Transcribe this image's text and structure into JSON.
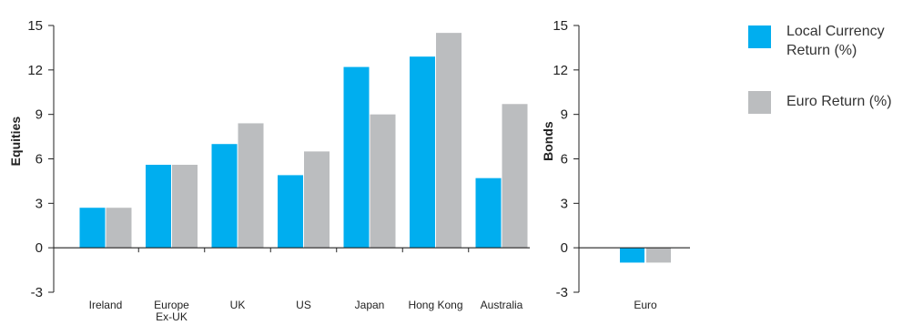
{
  "chart_data": [
    {
      "type": "bar",
      "ylabel": "Equities",
      "categories": [
        "Ireland",
        "Europe Ex-UK",
        "UK",
        "US",
        "Japan",
        "Hong Kong",
        "Australia"
      ],
      "series": [
        {
          "name": "Local Currency Return (%)",
          "color": "#00aeef",
          "values": [
            2.7,
            5.6,
            7.0,
            4.9,
            12.2,
            12.9,
            4.7
          ]
        },
        {
          "name": "Euro Return (%)",
          "color": "#bbbdbf",
          "values": [
            2.7,
            5.6,
            8.4,
            6.5,
            9.0,
            14.5,
            9.7
          ]
        }
      ],
      "ylim": [
        -3,
        15
      ],
      "yticks": [
        -3,
        0,
        3,
        6,
        9,
        12,
        15
      ],
      "yticklabels": [
        "-3",
        "0",
        "3",
        "6",
        "9",
        "12",
        "15"
      ],
      "grid": false
    },
    {
      "type": "bar",
      "ylabel": "Bonds",
      "categories": [
        "Euro"
      ],
      "series": [
        {
          "name": "Local Currency Return (%)",
          "color": "#00aeef",
          "values": [
            -1.0
          ]
        },
        {
          "name": "Euro Return (%)",
          "color": "#bbbdbf",
          "values": [
            -1.0
          ]
        }
      ],
      "ylim": [
        -3,
        15
      ],
      "yticks": [
        -3,
        0,
        3,
        6,
        9,
        12,
        15
      ],
      "yticklabels": [
        "-3",
        "0",
        "3",
        "6",
        "9",
        "12",
        "15"
      ],
      "grid": false
    }
  ],
  "legend": {
    "placement": "top-right",
    "items": [
      {
        "label_lines": [
          "Local Currency",
          "Return (%)"
        ],
        "color": "#00aeef"
      },
      {
        "label_lines": [
          "Euro Return (%)"
        ],
        "color": "#bbbdbf"
      }
    ]
  }
}
